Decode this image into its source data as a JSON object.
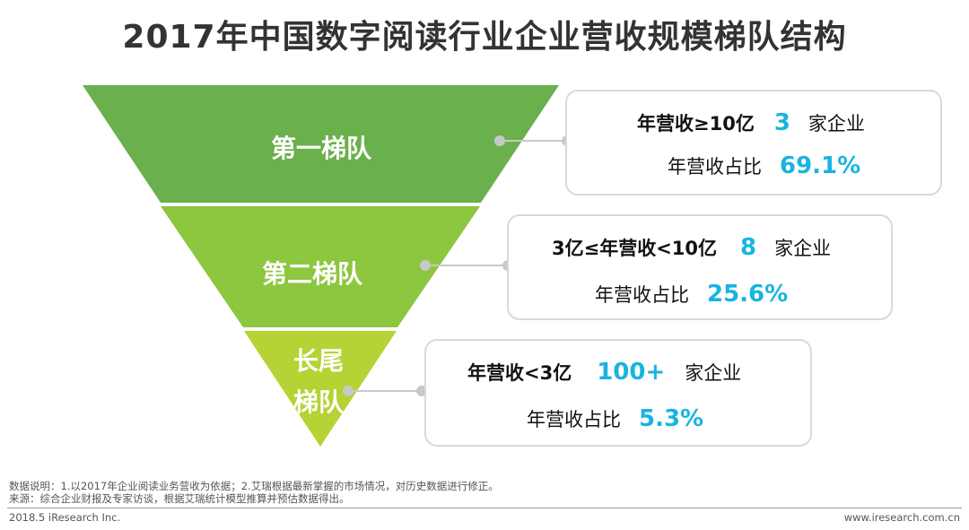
{
  "title": "2017年中国数字阅读行业企业营收规模梯队结构",
  "tiers": [
    {
      "name": "第一梯队",
      "condition": "年营收≥10亿",
      "count": "3",
      "count_unit": "家企业",
      "share_label": "年营收占比",
      "share": "69.1%"
    },
    {
      "name": "第二梯队",
      "condition": "3亿≤年营收<10亿",
      "count": "8",
      "count_unit": "家企业",
      "share_label": "年营收占比",
      "share": "25.6%"
    },
    {
      "name_line1": "长尾",
      "name_line2": "梯队",
      "condition": "年营收<3亿",
      "count": "100+",
      "count_unit": "家企业",
      "share_label": "年营收占比",
      "share": "5.3%"
    }
  ],
  "colors": {
    "tier1": "#6ab04c",
    "tier2": "#8dc63f",
    "tier3": "#b5d334",
    "accent": "#19b4e0",
    "connector": "#c8c8c8"
  },
  "notes": {
    "line1": "数据说明：1.以2017年企业阅读业务营收为依据；2.艾瑞根据最新掌握的市场情况，对历史数据进行修正。",
    "line2": "来源：综合企业财报及专家访谈，根据艾瑞统计模型推算并预估数据得出。"
  },
  "footer": {
    "left": "2018.5 iResearch Inc.",
    "right": "www.iresearch.com.cn"
  }
}
